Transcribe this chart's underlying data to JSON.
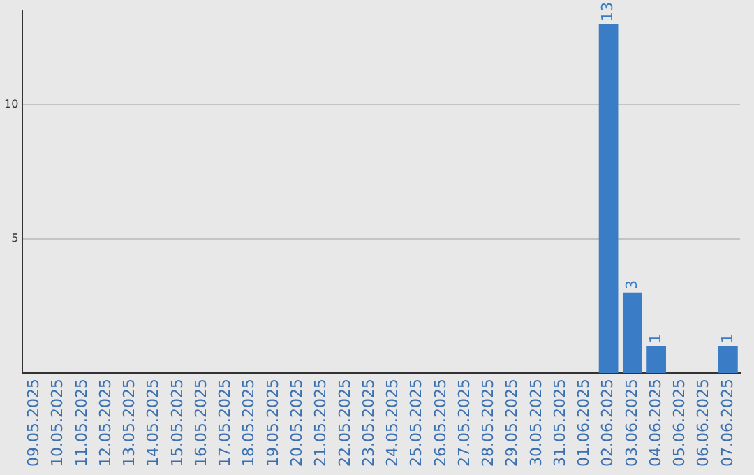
{
  "chart_data": {
    "type": "bar",
    "categories": [
      "09.05.2025",
      "10.05.2025",
      "11.05.2025",
      "12.05.2025",
      "13.05.2025",
      "14.05.2025",
      "15.05.2025",
      "16.05.2025",
      "17.05.2025",
      "18.05.2025",
      "19.05.2025",
      "20.05.2025",
      "21.05.2025",
      "22.05.2025",
      "23.05.2025",
      "24.05.2025",
      "25.05.2025",
      "26.05.2025",
      "27.05.2025",
      "28.05.2025",
      "29.05.2025",
      "30.05.2025",
      "31.05.2025",
      "01.06.2025",
      "02.06.2025",
      "03.06.2025",
      "04.06.2025",
      "05.06.2025",
      "06.06.2025",
      "07.06.2025"
    ],
    "values": [
      0,
      0,
      0,
      0,
      0,
      0,
      0,
      0,
      0,
      0,
      0,
      0,
      0,
      0,
      0,
      0,
      0,
      0,
      0,
      0,
      0,
      0,
      0,
      0,
      13,
      3,
      1,
      0,
      0,
      1
    ],
    "value_labels": [
      null,
      null,
      null,
      null,
      null,
      null,
      null,
      null,
      null,
      null,
      null,
      null,
      null,
      null,
      null,
      null,
      null,
      null,
      null,
      null,
      null,
      null,
      null,
      null,
      "13",
      "3",
      "1",
      null,
      null,
      "1"
    ],
    "color": "#3a7dc6",
    "ylim": [
      0,
      13.5
    ],
    "yticks": [
      5,
      10
    ],
    "grid": "y",
    "legend": false
  }
}
